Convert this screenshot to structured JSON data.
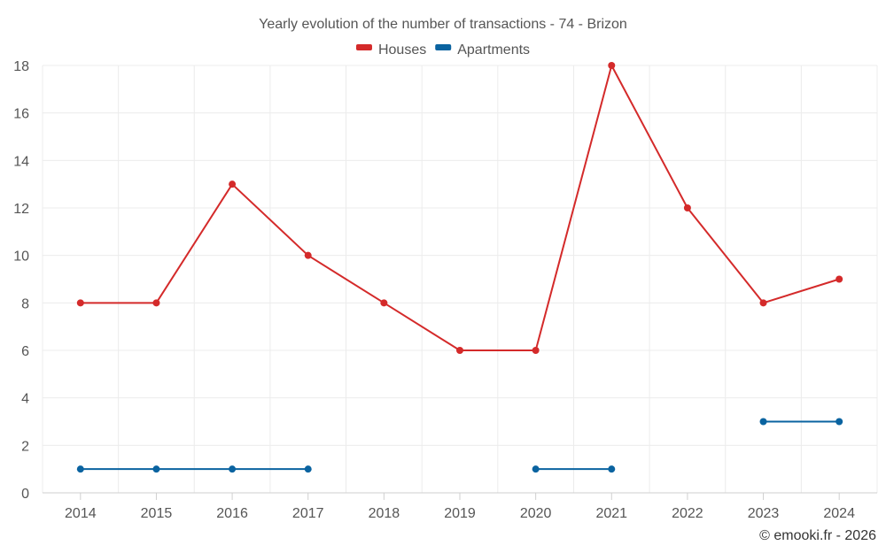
{
  "chart_data": {
    "type": "line",
    "title": "Yearly evolution of the number of transactions - 74 - Brizon",
    "xlabel": "",
    "ylabel": "",
    "categories": [
      "2014",
      "2015",
      "2016",
      "2017",
      "2018",
      "2019",
      "2020",
      "2021",
      "2022",
      "2023",
      "2024"
    ],
    "ylim": [
      0,
      18
    ],
    "yticks": [
      0,
      2,
      4,
      6,
      8,
      10,
      12,
      14,
      16,
      18
    ],
    "grid": true,
    "legend_position": "top-center",
    "series": [
      {
        "name": "Houses",
        "color": "#d42a2a",
        "values": [
          8,
          8,
          13,
          10,
          8,
          6,
          6,
          18,
          12,
          8,
          9
        ]
      },
      {
        "name": "Apartments",
        "color": "#0a63a0",
        "values": [
          1,
          1,
          1,
          1,
          null,
          null,
          1,
          1,
          null,
          3,
          3
        ]
      }
    ]
  },
  "credit": "© emooki.fr - 2026"
}
